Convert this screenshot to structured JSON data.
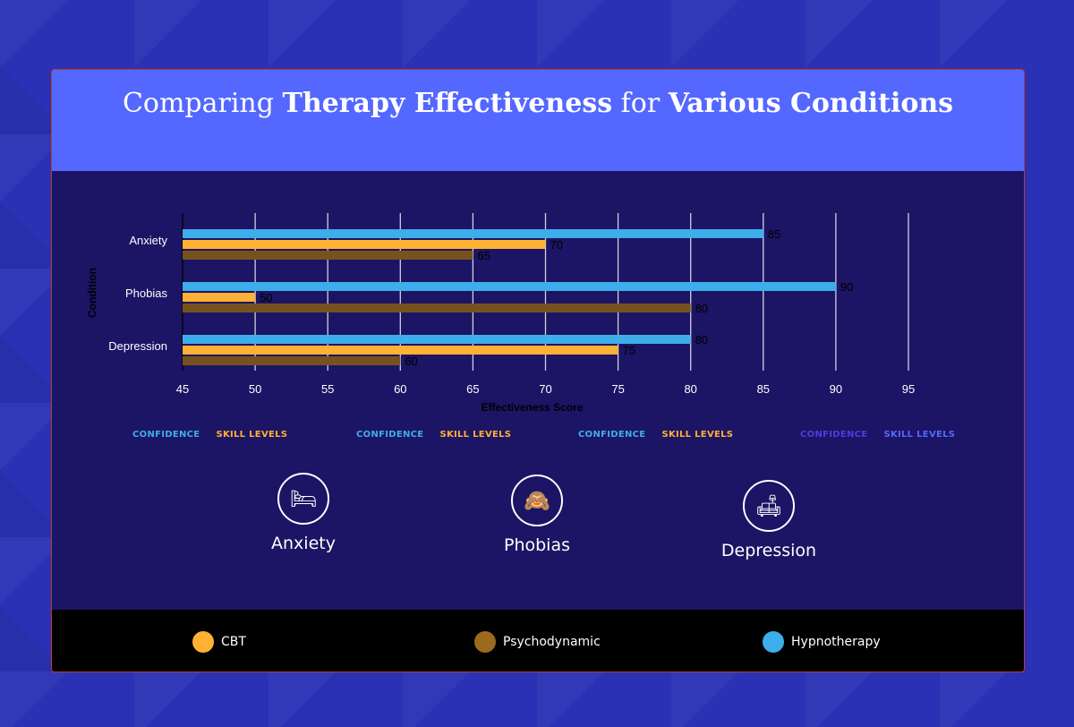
{
  "title": {
    "pre": "Comparing ",
    "b1": "Therapy Effectiveness",
    "mid": " for ",
    "b2": "Various Conditions"
  },
  "chart_data": {
    "type": "bar",
    "orientation": "horizontal",
    "categories": [
      "Anxiety",
      "Phobias",
      "Depression"
    ],
    "series": [
      {
        "name": "Hypnotherapy",
        "values": [
          85,
          90,
          80
        ],
        "color": "#3daee9"
      },
      {
        "name": "CBT",
        "values": [
          70,
          50,
          75
        ],
        "color": "#ffb133"
      },
      {
        "name": "Psychodynamic",
        "values": [
          65,
          80,
          60
        ],
        "color": "#775220"
      }
    ],
    "xlabel": "Effectiveness Score",
    "ylabel": "Condition",
    "xlim": [
      45,
      95
    ],
    "xticks": [
      45,
      50,
      55,
      60,
      65,
      70,
      75,
      80,
      85,
      90,
      95
    ],
    "grid": true
  },
  "labels": [
    {
      "confidence": "CONFIDENCE",
      "skill": "SKILL LEVELS",
      "c1": "#3daee9",
      "c2": "#ffb133"
    },
    {
      "confidence": "CONFIDENCE",
      "skill": "SKILL LEVELS",
      "c1": "#3daee9",
      "c2": "#ffb133"
    },
    {
      "confidence": "CONFIDENCE",
      "skill": "SKILL LEVELS",
      "c1": "#3daee9",
      "c2": "#ffb133"
    },
    {
      "confidence": "CONFIDENCE",
      "skill": "SKILL LEVELS",
      "c1": "#4a3de0",
      "c2": "#5468ff"
    }
  ],
  "icons": [
    {
      "icon": "bed-icon",
      "glyph": "🛏",
      "label": "Anxiety"
    },
    {
      "icon": "ostrich-icon",
      "glyph": "🙈",
      "label": "Phobias"
    },
    {
      "icon": "therapy-couch-icon",
      "glyph": "🛋",
      "label": "Depression"
    }
  ],
  "legend": [
    {
      "name": "CBT",
      "color": "#ffb133"
    },
    {
      "name": "Psychodynamic",
      "color": "#9c6a1f"
    },
    {
      "name": "Hypnotherapy",
      "color": "#3daee9"
    }
  ]
}
